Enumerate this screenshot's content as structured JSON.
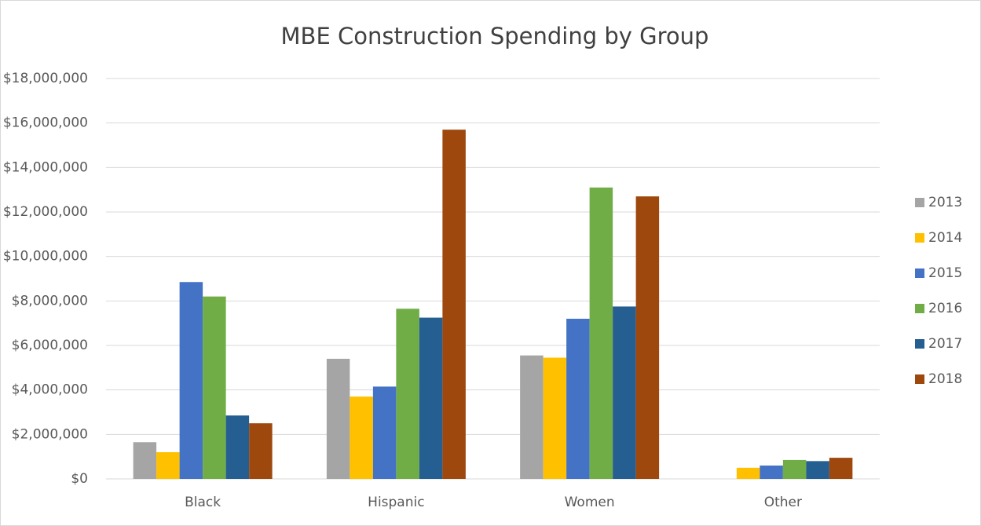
{
  "chart_data": {
    "type": "bar",
    "title": "MBE Construction Spending by Group",
    "categories": [
      "Black",
      "Hispanic",
      "Women",
      "Other"
    ],
    "series": [
      {
        "name": "2013",
        "color": "#a5a5a5",
        "values": [
          1650000,
          5400000,
          5550000,
          0
        ]
      },
      {
        "name": "2014",
        "color": "#ffc000",
        "values": [
          1200000,
          3700000,
          5450000,
          500000
        ]
      },
      {
        "name": "2015",
        "color": "#4472c4",
        "values": [
          8850000,
          4150000,
          7200000,
          600000
        ]
      },
      {
        "name": "2016",
        "color": "#70ad47",
        "values": [
          8200000,
          7650000,
          13100000,
          850000
        ]
      },
      {
        "name": "2017",
        "color": "#255e91",
        "values": [
          2850000,
          7250000,
          7750000,
          800000
        ]
      },
      {
        "name": "2018",
        "color": "#9e480e",
        "values": [
          2500000,
          15700000,
          12700000,
          950000
        ]
      }
    ],
    "ylim": [
      0,
      18000000
    ],
    "yticks": [
      {
        "value": 0,
        "label": "$0"
      },
      {
        "value": 2000000,
        "label": "$2,000,000"
      },
      {
        "value": 4000000,
        "label": "$4,000,000"
      },
      {
        "value": 6000000,
        "label": "$6,000,000"
      },
      {
        "value": 8000000,
        "label": "$8,000,000"
      },
      {
        "value": 10000000,
        "label": "$10,000,000"
      },
      {
        "value": 12000000,
        "label": "$12,000,000"
      },
      {
        "value": 14000000,
        "label": "$14,000,000"
      },
      {
        "value": 16000000,
        "label": "$16,000,000"
      },
      {
        "value": 18000000,
        "label": "$18,000,000"
      }
    ],
    "grid": true,
    "legend": "right"
  }
}
